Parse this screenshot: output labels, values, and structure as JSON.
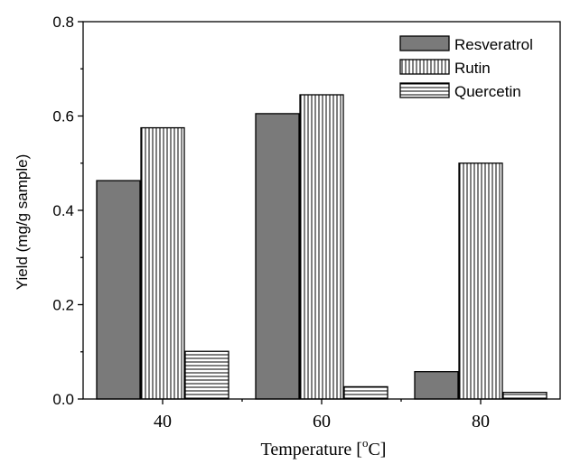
{
  "chart_data": {
    "type": "bar",
    "categories": [
      "40",
      "60",
      "80"
    ],
    "series": [
      {
        "name": "Resveratrol",
        "values": [
          0.463,
          0.605,
          0.058
        ],
        "fill": "#7a7a7a",
        "pattern": "solid"
      },
      {
        "name": "Rutin",
        "values": [
          0.575,
          0.645,
          0.5
        ],
        "fill": "#ffffff",
        "pattern": "vertical-lines"
      },
      {
        "name": "Quercetin",
        "values": [
          0.101,
          0.026,
          0.014
        ],
        "fill": "#ffffff",
        "pattern": "horizontal-lines"
      }
    ],
    "xlabel": "Temperature [",
    "xlabel_superscript": "o",
    "xlabel_suffix": "C]",
    "ylabel": "Yield (mg/g sample)",
    "ylim": [
      0.0,
      0.8
    ],
    "yticks": [
      "0.0",
      "0.2",
      "0.4",
      "0.6",
      "0.8"
    ],
    "grid": false,
    "legend_position": "top-right"
  }
}
